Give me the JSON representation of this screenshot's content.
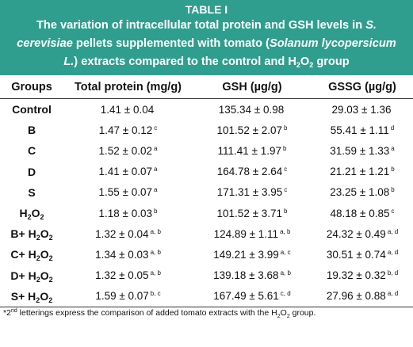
{
  "title": {
    "label": "TABLE I",
    "line1_a": "The variation of intracellular total protein and GSH levels in ",
    "line1_b": "S.",
    "line2_a": "cerevisiae",
    "line2_b": " pellets supplemented with tomato (",
    "line2_c": "Solanum lycopersicum",
    "line3_a": "L.",
    "line3_b": ") extracts compared to the control and H",
    "line3_sub": "2",
    "line3_c": "O",
    "line3_sub2": "2",
    "line3_d": " group"
  },
  "headers": [
    "Groups",
    "Total protein (mg/g)",
    "GSH (µg/g)",
    "GSSG (µg/g)"
  ],
  "rows": [
    {
      "group": "Control",
      "group_sub": "",
      "group_tail": "",
      "group_sub2": "",
      "protein": "1.41 ± 0.04",
      "protein_sup": "",
      "gsh": "135.34 ± 0.98",
      "gsh_sup": "",
      "gssg": "29.03 ± 1.36",
      "gssg_sup": ""
    },
    {
      "group": "B",
      "group_sub": "",
      "group_tail": "",
      "group_sub2": "",
      "protein": "1.47 ± 0.12",
      "protein_sup": "c",
      "gsh": "101.52 ± 2.07",
      "gsh_sup": "b",
      "gssg": "55.41 ± 1.11",
      "gssg_sup": "d"
    },
    {
      "group": "C",
      "group_sub": "",
      "group_tail": "",
      "group_sub2": "",
      "protein": "1.52 ± 0.02",
      "protein_sup": "a",
      "gsh": "111.41 ± 1.97",
      "gsh_sup": "b",
      "gssg": "31.59 ± 1.33",
      "gssg_sup": "a"
    },
    {
      "group": "D",
      "group_sub": "",
      "group_tail": "",
      "group_sub2": "",
      "protein": "1.41 ± 0.07",
      "protein_sup": "a",
      "gsh": "164.78 ± 2.64",
      "gsh_sup": "c",
      "gssg": "21.21 ± 1.21",
      "gssg_sup": "b"
    },
    {
      "group": "S",
      "group_sub": "",
      "group_tail": "",
      "group_sub2": "",
      "protein": "1.55 ± 0.07",
      "protein_sup": "a",
      "gsh": "171.31 ± 3.95",
      "gsh_sup": "c",
      "gssg": "23.25 ± 1.08",
      "gssg_sup": "b"
    },
    {
      "group": "H",
      "group_sub": "2",
      "group_tail": "O",
      "group_sub2": "2",
      "protein": "1.18 ± 0.03",
      "protein_sup": "b",
      "gsh": "101.52 ± 3.71",
      "gsh_sup": "b",
      "gssg": "48.18 ± 0.85",
      "gssg_sup": "c"
    },
    {
      "group": "B+ H",
      "group_sub": "2",
      "group_tail": "O",
      "group_sub2": "2",
      "protein": "1.32 ± 0.04",
      "protein_sup": "a, b",
      "gsh": "124.89 ± 1.11",
      "gsh_sup": "a, b",
      "gssg": "24.32 ± 0.49",
      "gssg_sup": "a, d"
    },
    {
      "group": "C+ H",
      "group_sub": "2",
      "group_tail": "O",
      "group_sub2": "2",
      "protein": "1.34 ± 0.03",
      "protein_sup": "a, b",
      "gsh": "149.21 ± 3.99",
      "gsh_sup": "a, c",
      "gssg": "30.51 ± 0.74",
      "gssg_sup": "a, d"
    },
    {
      "group": "D+ H",
      "group_sub": "2",
      "group_tail": "O",
      "group_sub2": "2",
      "protein": "1.32 ± 0.05",
      "protein_sup": "a, b",
      "gsh": "139.18 ± 3.68",
      "gsh_sup": "a, b",
      "gssg": "19.32 ± 0.32",
      "gssg_sup": "b, d"
    },
    {
      "group": "S+ H",
      "group_sub": "2",
      "group_tail": "O",
      "group_sub2": "2",
      "protein": "1.59 ± 0.07",
      "protein_sup": "b, c",
      "gsh": "167.49 ± 5.61",
      "gsh_sup": "c, d",
      "gssg": "27.96 ± 0.88",
      "gssg_sup": "a, d"
    }
  ],
  "footnote": {
    "a": "*2",
    "sup": "nd",
    "b": " letterings express the comparison of added tomato extracts with the H",
    "sub": "2",
    "c": "O",
    "sub2": "2",
    "d": " group."
  }
}
